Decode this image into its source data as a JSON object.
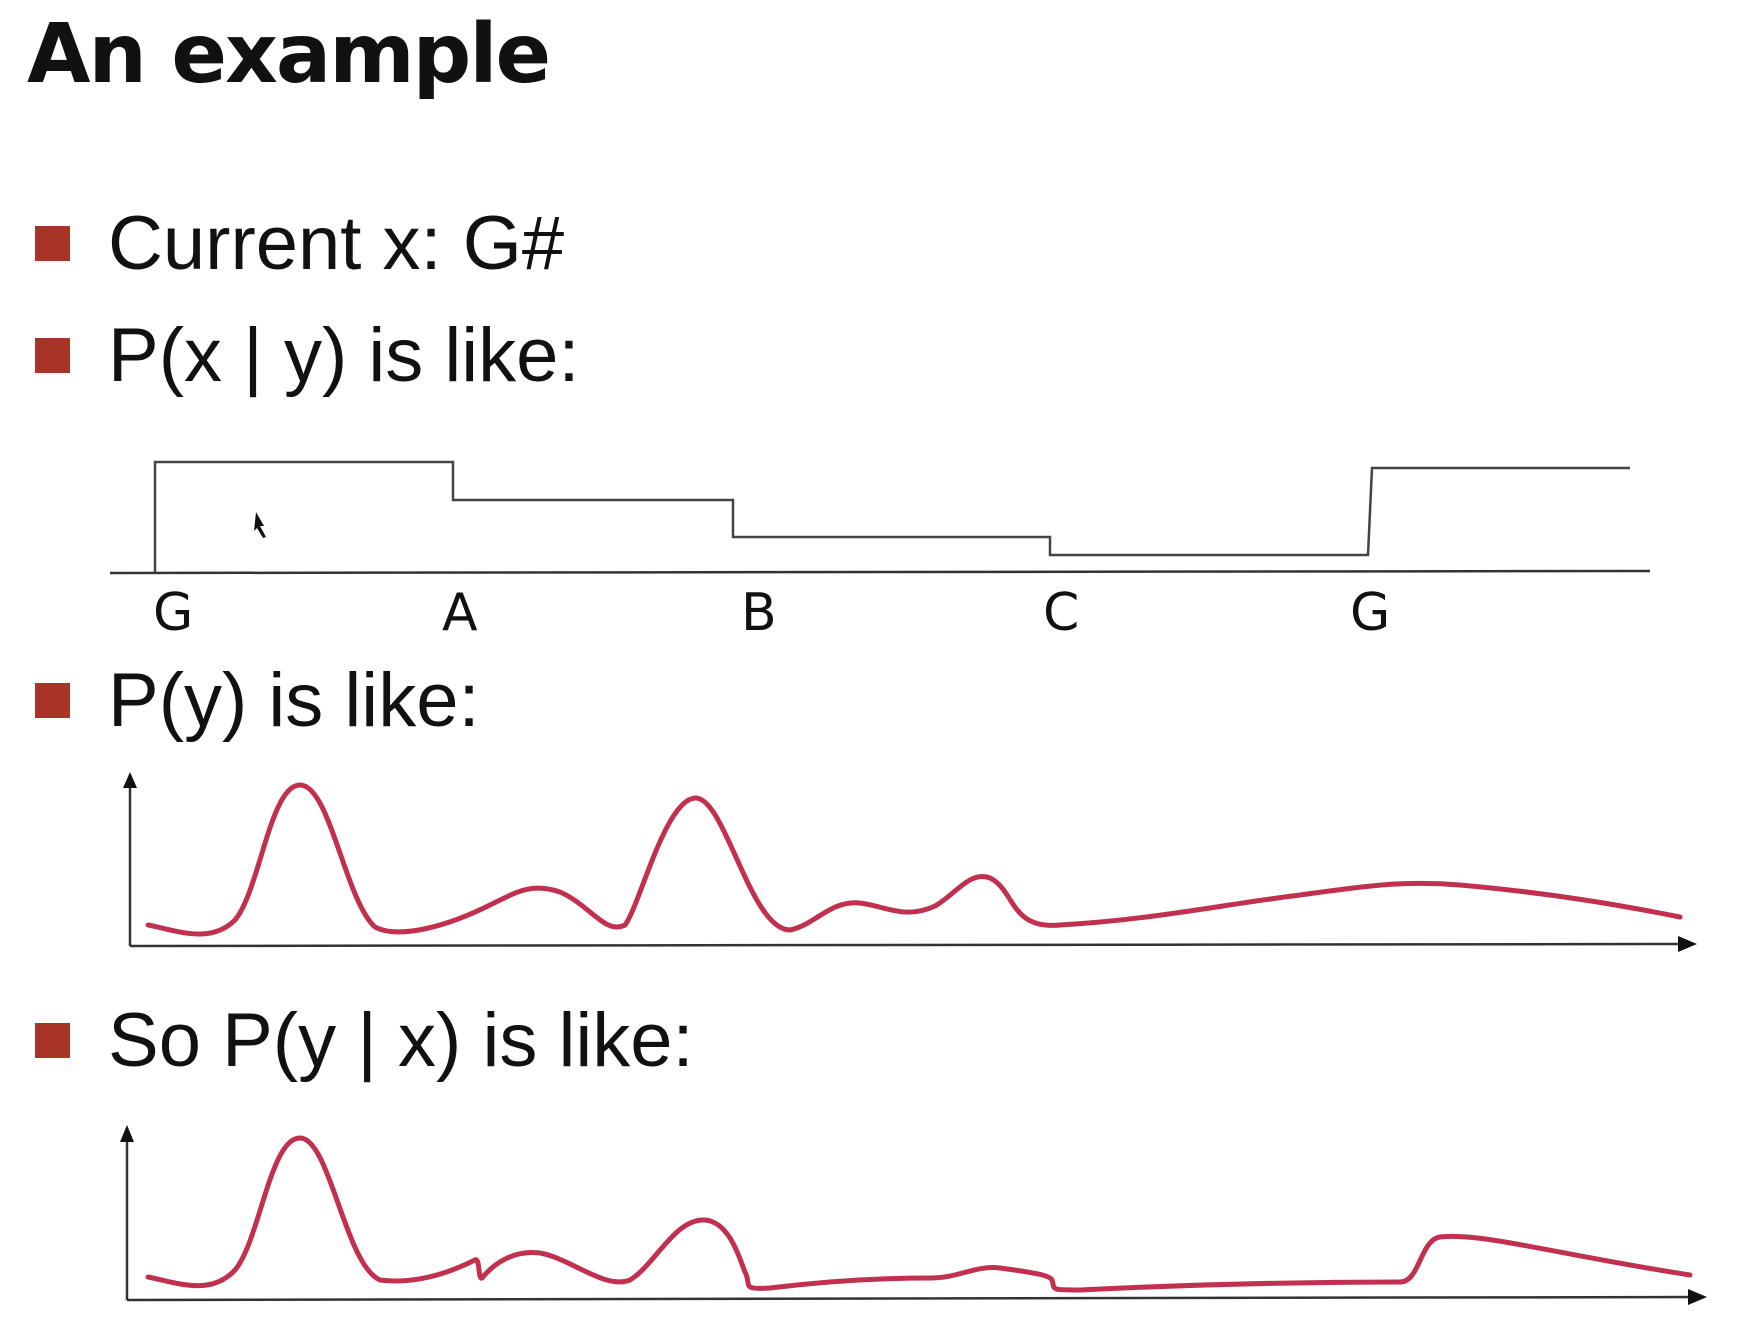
{
  "slide": {
    "title": "An example",
    "bullets": [
      {
        "text": "Current x: G#"
      },
      {
        "text": "P(x | y) is like:"
      },
      {
        "text": "P(y) is like:"
      },
      {
        "text": "So P(y | x) is like:"
      }
    ],
    "bullet_color": "#a83427",
    "curve_color": "#c2304f"
  },
  "step_plot": {
    "note_labels": [
      "G",
      "A",
      "B",
      "C",
      "G"
    ],
    "relative_levels": [
      1.0,
      0.67,
      0.33,
      0.17,
      0.95
    ]
  }
}
